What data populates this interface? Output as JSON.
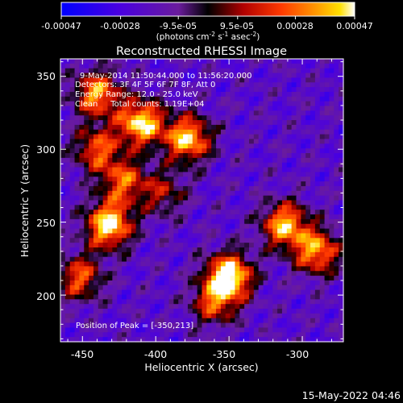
{
  "colorbar": {
    "ticks": [
      "-0.00047",
      "-0.00028",
      "-9.5e-05",
      "9.5e-05",
      "0.00028",
      "0.00047"
    ],
    "tick_values": [
      -0.00047,
      -0.00028,
      -9.5e-05,
      9.5e-05,
      0.00028,
      0.00047
    ],
    "range": [
      -0.00047,
      0.00047
    ],
    "units_prefix": "(photons cm",
    "units_exp1": "-2",
    "units_mid": " s",
    "units_exp2": "-1",
    "units_mid2": " asec",
    "units_exp3": "-2",
    "units_suffix": ")"
  },
  "annotations": {
    "time": "9-May-2014 11:50:44.000 to 11:56:20.000",
    "detectors": "Detectors: 3F 4F 5F 6F 7F 8F, Att 0",
    "energy": "Energy Range: 12.0 - 25.0 keV",
    "clean": "Clean     Total counts: 1.19E+04",
    "peak": "Position of Peak = [-350,213]"
  },
  "footer": {
    "timestamp": "15-May-2022 04:46"
  },
  "chart_data": {
    "type": "heatmap",
    "title": "Reconstructed RHESSI Image",
    "xlabel": "Heliocentric X (arcsec)",
    "ylabel": "Heliocentric Y (arcsec)",
    "xlim": [
      -465,
      -272
    ],
    "ylim": [
      168,
      362
    ],
    "xticks": [
      -450,
      -400,
      -350,
      -300
    ],
    "yticks": [
      200,
      250,
      300,
      350
    ],
    "peak": [
      -350,
      213
    ],
    "sources": [
      {
        "x": -350,
        "y": 213,
        "amp": 1.0
      },
      {
        "x": -432,
        "y": 248,
        "amp": 0.95
      },
      {
        "x": -452,
        "y": 212,
        "amp": 0.6
      },
      {
        "x": -440,
        "y": 300,
        "amp": 0.6
      },
      {
        "x": -410,
        "y": 318,
        "amp": 0.9
      },
      {
        "x": -378,
        "y": 307,
        "amp": 0.85
      },
      {
        "x": -440,
        "y": 338,
        "amp": 0.75
      },
      {
        "x": -422,
        "y": 278,
        "amp": 0.6
      },
      {
        "x": -312,
        "y": 248,
        "amp": 0.8
      },
      {
        "x": -290,
        "y": 230,
        "amp": 0.75
      },
      {
        "x": -360,
        "y": 195,
        "amp": 0.55
      },
      {
        "x": -395,
        "y": 270,
        "amp": 0.4
      }
    ]
  }
}
